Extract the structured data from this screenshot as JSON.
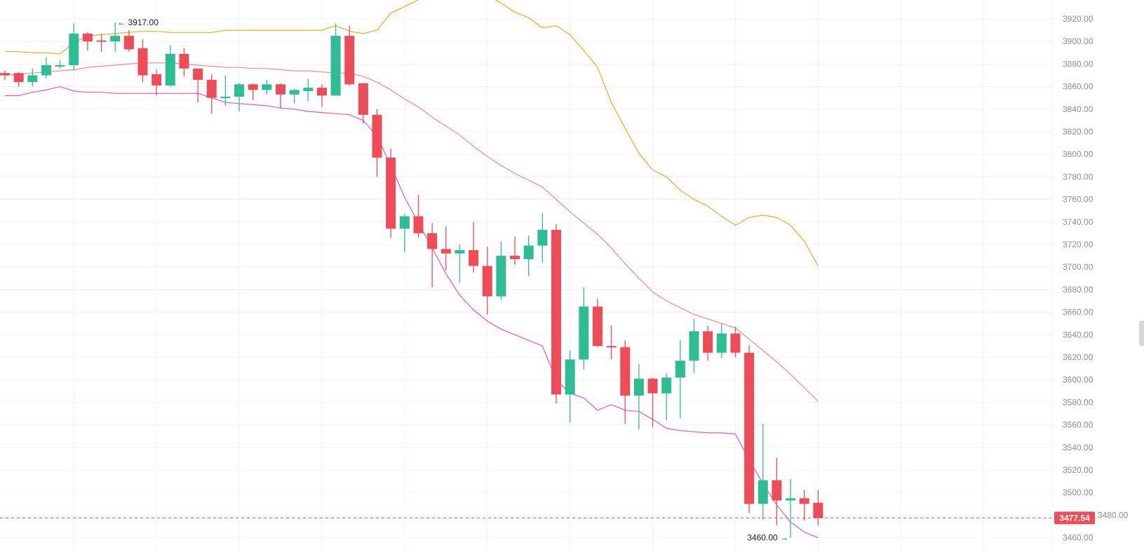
{
  "chart_data": {
    "type": "candlestick",
    "title": "",
    "ylim": [
      3460,
      3920
    ],
    "y_ticks": [
      "3920.00",
      "3900.00",
      "3880.00",
      "3860.00",
      "3840.00",
      "3820.00",
      "3800.00",
      "3780.00",
      "3760.00",
      "3740.00",
      "3720.00",
      "3700.00",
      "3680.00",
      "3660.00",
      "3640.00",
      "3620.00",
      "3600.00",
      "3580.00",
      "3560.00",
      "3540.00",
      "3520.00",
      "3500.00",
      "3480.00",
      "3460.00"
    ],
    "grid": true,
    "colors": {
      "up": "#2ebd92",
      "down": "#ef4c5a",
      "upper_band": "#f7a823",
      "middle_band": "#f58a82",
      "lower_band": "#e455c8",
      "grid": "#f2f3f5",
      "axis_text": "#8a8f99"
    },
    "candles_ohlc": [
      [
        3872,
        3874,
        3866,
        3870
      ],
      [
        3872,
        3873,
        3860,
        3864
      ],
      [
        3864,
        3876,
        3860,
        3870
      ],
      [
        3870,
        3886,
        3867,
        3879
      ],
      [
        3878,
        3883,
        3876,
        3879
      ],
      [
        3879,
        3916,
        3874,
        3907
      ],
      [
        3907,
        3908,
        3892,
        3900
      ],
      [
        3901,
        3907,
        3891,
        3900
      ],
      [
        3900,
        3917,
        3891,
        3905
      ],
      [
        3905,
        3910,
        3891,
        3893
      ],
      [
        3894,
        3902,
        3864,
        3870
      ],
      [
        3871,
        3875,
        3852,
        3861
      ],
      [
        3861,
        3897,
        3860,
        3889
      ],
      [
        3889,
        3894,
        3869,
        3876
      ],
      [
        3876,
        3876,
        3846,
        3866
      ],
      [
        3866,
        3871,
        3836,
        3850
      ],
      [
        3850,
        3870,
        3843,
        3851
      ],
      [
        3851,
        3863,
        3838,
        3862
      ],
      [
        3862,
        3863,
        3848,
        3857
      ],
      [
        3857,
        3866,
        3853,
        3862
      ],
      [
        3862,
        3863,
        3841,
        3853
      ],
      [
        3853,
        3858,
        3845,
        3857
      ],
      [
        3856,
        3867,
        3847,
        3859
      ],
      [
        3859,
        3862,
        3842,
        3852
      ],
      [
        3852,
        3916,
        3852,
        3905
      ],
      [
        3905,
        3914,
        3861,
        3862
      ],
      [
        3863,
        3863,
        3827,
        3835
      ],
      [
        3835,
        3840,
        3780,
        3797
      ],
      [
        3797,
        3805,
        3726,
        3734
      ],
      [
        3734,
        3747,
        3713,
        3745
      ],
      [
        3745,
        3764,
        3726,
        3730
      ],
      [
        3730,
        3739,
        3682,
        3716
      ],
      [
        3716,
        3736,
        3697,
        3712
      ],
      [
        3712,
        3720,
        3686,
        3715
      ],
      [
        3715,
        3740,
        3695,
        3701
      ],
      [
        3701,
        3718,
        3658,
        3674
      ],
      [
        3674,
        3723,
        3671,
        3710
      ],
      [
        3710,
        3727,
        3702,
        3707
      ],
      [
        3707,
        3728,
        3692,
        3719
      ],
      [
        3719,
        3748,
        3704,
        3733
      ],
      [
        3733,
        3738,
        3579,
        3587
      ],
      [
        3587,
        3626,
        3562,
        3618
      ],
      [
        3618,
        3682,
        3609,
        3665
      ],
      [
        3665,
        3672,
        3629,
        3630
      ],
      [
        3630,
        3648,
        3618,
        3629
      ],
      [
        3629,
        3635,
        3561,
        3586
      ],
      [
        3586,
        3614,
        3556,
        3601
      ],
      [
        3601,
        3602,
        3558,
        3588
      ],
      [
        3588,
        3606,
        3564,
        3602
      ],
      [
        3602,
        3635,
        3566,
        3617
      ],
      [
        3617,
        3654,
        3606,
        3643
      ],
      [
        3643,
        3648,
        3617,
        3624
      ],
      [
        3624,
        3650,
        3619,
        3641
      ],
      [
        3641,
        3647,
        3620,
        3624
      ],
      [
        3624,
        3631,
        3482,
        3490
      ],
      [
        3490,
        3561,
        3476,
        3511
      ],
      [
        3511,
        3531,
        3471,
        3493
      ],
      [
        3493,
        3512,
        3460,
        3495
      ],
      [
        3495,
        3502,
        3475,
        3490
      ],
      [
        3491,
        3502,
        3471,
        3477.54
      ]
    ],
    "bollinger": {
      "upper": [
        3891,
        3891,
        3890,
        3890,
        3889,
        3899,
        3905,
        3906,
        3907,
        3908,
        3909,
        3909,
        3908,
        3908,
        3908,
        3908,
        3910,
        3910,
        3910,
        3910,
        3910,
        3910,
        3910,
        3910,
        3914,
        3909,
        3907,
        3910,
        3925,
        3931,
        3937,
        3942,
        3946,
        3948,
        3946,
        3941,
        3934,
        3926,
        3921,
        3912,
        3914,
        3906,
        3892,
        3877,
        3846,
        3823,
        3801,
        3786,
        3780,
        3768,
        3760,
        3754,
        3745,
        3737,
        3744,
        3746,
        3744,
        3737,
        3723,
        3701
      ],
      "middle": [
        3870,
        3871,
        3872,
        3873,
        3874,
        3875,
        3877,
        3878,
        3879,
        3880,
        3881,
        3881,
        3881,
        3880,
        3879,
        3878,
        3877,
        3877,
        3876,
        3876,
        3875,
        3874,
        3874,
        3873,
        3872,
        3872,
        3869,
        3864,
        3857,
        3849,
        3842,
        3833,
        3825,
        3817,
        3807,
        3798,
        3790,
        3783,
        3777,
        3771,
        3760,
        3749,
        3739,
        3729,
        3717,
        3703,
        3690,
        3678,
        3670,
        3664,
        3658,
        3654,
        3650,
        3646,
        3636,
        3626,
        3616,
        3605,
        3593,
        3581
      ],
      "lower": [
        3852,
        3852,
        3855,
        3857,
        3860,
        3856,
        3855,
        3855,
        3854,
        3854,
        3854,
        3854,
        3854,
        3854,
        3854,
        3850,
        3846,
        3845,
        3844,
        3843,
        3841,
        3840,
        3838,
        3837,
        3836,
        3835,
        3830,
        3816,
        3790,
        3762,
        3739,
        3717,
        3694,
        3675,
        3662,
        3652,
        3645,
        3640,
        3635,
        3630,
        3600,
        3588,
        3584,
        3573,
        3578,
        3573,
        3572,
        3565,
        3557,
        3555,
        3554,
        3553,
        3553,
        3552,
        3529,
        3508,
        3489,
        3474,
        3465,
        3460
      ]
    },
    "annotations": {
      "high_marker": {
        "text": "← 3917.00",
        "candle": 9,
        "value": 3917
      },
      "low_marker": {
        "text": "3460.00 →",
        "candle": 58,
        "value": 3460
      }
    },
    "last_price": {
      "value": 3477.54,
      "label": "3477.54"
    }
  }
}
